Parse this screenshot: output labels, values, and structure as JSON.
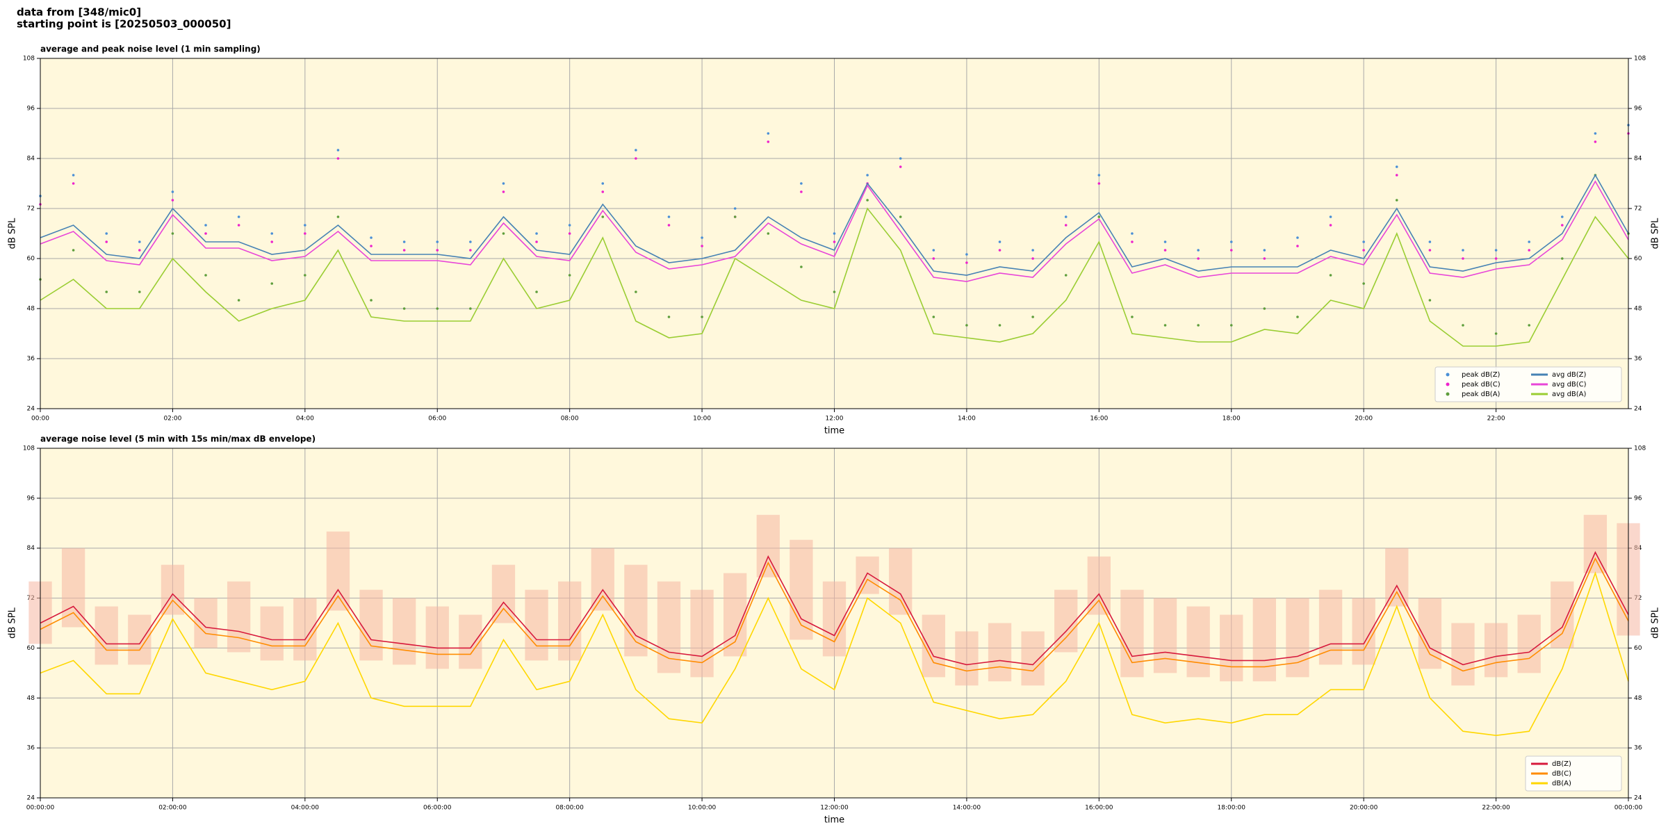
{
  "header": {
    "lines": [
      "data from [348/mic0]",
      "starting point is [20250503_000050]"
    ]
  },
  "chart_data": [
    {
      "type": "line",
      "title": "average and peak noise level (1 min sampling)",
      "xlabel": "time",
      "ylabel": "dB SPL",
      "background": "#fff8dc",
      "grid": true,
      "legend": "lower right",
      "legend_columns": 2,
      "x": [
        0,
        0.5,
        1,
        1.5,
        2,
        2.5,
        3,
        3.5,
        4,
        4.5,
        5,
        5.5,
        6,
        6.5,
        7,
        7.5,
        8,
        8.5,
        9,
        9.5,
        10,
        10.5,
        11,
        11.5,
        12,
        12.5,
        13,
        13.5,
        14,
        14.5,
        15,
        15.5,
        16,
        16.5,
        17,
        17.5,
        18,
        18.5,
        19,
        19.5,
        20,
        20.5,
        21,
        21.5,
        22,
        22.5,
        23,
        23.5,
        24
      ],
      "xlim": [
        0,
        24
      ],
      "xticks": [
        {
          "value": 0,
          "label": "00:00"
        },
        {
          "value": 2,
          "label": "02:00"
        },
        {
          "value": 4,
          "label": "04:00"
        },
        {
          "value": 6,
          "label": "06:00"
        },
        {
          "value": 8,
          "label": "08:00"
        },
        {
          "value": 10,
          "label": "10:00"
        },
        {
          "value": 12,
          "label": "12:00"
        },
        {
          "value": 14,
          "label": "14:00"
        },
        {
          "value": 16,
          "label": "16:00"
        },
        {
          "value": 18,
          "label": "18:00"
        },
        {
          "value": 20,
          "label": "20:00"
        },
        {
          "value": 22,
          "label": "22:00"
        }
      ],
      "ylim": [
        24,
        108
      ],
      "yticks": [
        24,
        36,
        48,
        60,
        72,
        84,
        96,
        108
      ],
      "series": [
        {
          "name": "peak dB(Z)",
          "kind": "scatter",
          "color": "#4a8fd6",
          "values": [
            75,
            80,
            66,
            64,
            76,
            68,
            70,
            66,
            68,
            86,
            65,
            64,
            64,
            64,
            78,
            66,
            68,
            78,
            86,
            70,
            65,
            72,
            90,
            78,
            66,
            80,
            84,
            62,
            61,
            64,
            62,
            70,
            80,
            66,
            64,
            62,
            64,
            62,
            65,
            70,
            64,
            82,
            64,
            62,
            62,
            64,
            70,
            90,
            92
          ]
        },
        {
          "name": "peak dB(C)",
          "kind": "scatter",
          "color": "#ee22cc",
          "values": [
            73,
            78,
            64,
            62,
            74,
            66,
            68,
            64,
            66,
            84,
            63,
            62,
            62,
            62,
            76,
            64,
            66,
            76,
            84,
            68,
            63,
            70,
            88,
            76,
            64,
            78,
            82,
            60,
            59,
            62,
            60,
            68,
            78,
            64,
            62,
            60,
            62,
            60,
            63,
            68,
            62,
            80,
            62,
            60,
            60,
            62,
            68,
            88,
            90
          ]
        },
        {
          "name": "peak dB(A)",
          "kind": "scatter",
          "color": "#5e9e3c",
          "values": [
            55,
            62,
            52,
            52,
            66,
            56,
            50,
            54,
            56,
            70,
            50,
            48,
            48,
            48,
            66,
            52,
            56,
            70,
            52,
            46,
            46,
            70,
            66,
            58,
            52,
            74,
            70,
            46,
            44,
            44,
            46,
            56,
            70,
            46,
            44,
            44,
            44,
            48,
            46,
            56,
            54,
            74,
            50,
            44,
            42,
            44,
            60,
            80,
            66
          ]
        },
        {
          "name": "avg dB(Z)",
          "kind": "line",
          "color": "#4682b4",
          "values": [
            65,
            68,
            61,
            60,
            72,
            64,
            64,
            61,
            62,
            68,
            61,
            61,
            61,
            60,
            70,
            62,
            61,
            73,
            63,
            59,
            60,
            62,
            70,
            65,
            62,
            78,
            68,
            57,
            56,
            58,
            57,
            65,
            71,
            58,
            60,
            57,
            58,
            58,
            58,
            62,
            60,
            72,
            58,
            57,
            59,
            60,
            66,
            80,
            66
          ]
        },
        {
          "name": "avg dB(C)",
          "kind": "line",
          "color": "#e845d8",
          "values": [
            63.5,
            66.5,
            59.5,
            58.5,
            70.5,
            62.5,
            62.5,
            59.5,
            60.5,
            66.5,
            59.5,
            59.5,
            59.5,
            58.5,
            68.5,
            60.5,
            59.5,
            71.5,
            61.5,
            57.5,
            58.5,
            60.5,
            68.5,
            63.5,
            60.5,
            77.5,
            66.5,
            55.5,
            54.5,
            56.5,
            55.5,
            63.5,
            69.5,
            56.5,
            58.5,
            55.5,
            56.5,
            56.5,
            56.5,
            60.5,
            58.5,
            70.5,
            56.5,
            55.5,
            57.5,
            58.5,
            64.5,
            78.5,
            64.5
          ]
        },
        {
          "name": "avg dB(A)",
          "kind": "line",
          "color": "#9acd32",
          "values": [
            50,
            55,
            48,
            48,
            60,
            52,
            45,
            48,
            50,
            62,
            46,
            45,
            45,
            45,
            60,
            48,
            50,
            65,
            45,
            41,
            42,
            60,
            55,
            50,
            48,
            72,
            62,
            42,
            41,
            40,
            42,
            50,
            64,
            42,
            41,
            40,
            40,
            43,
            42,
            50,
            48,
            66,
            45,
            39,
            39,
            40,
            55,
            70,
            60
          ]
        }
      ]
    },
    {
      "type": "line",
      "title": "average noise level (5 min with 15s min/max dB envelope)",
      "xlabel": "time",
      "ylabel": "dB SPL",
      "background": "#fff8dc",
      "grid": true,
      "legend": "lower right",
      "legend_columns": 1,
      "x": [
        0,
        0.5,
        1,
        1.5,
        2,
        2.5,
        3,
        3.5,
        4,
        4.5,
        5,
        5.5,
        6,
        6.5,
        7,
        7.5,
        8,
        8.5,
        9,
        9.5,
        10,
        10.5,
        11,
        11.5,
        12,
        12.5,
        13,
        13.5,
        14,
        14.5,
        15,
        15.5,
        16,
        16.5,
        17,
        17.5,
        18,
        18.5,
        19,
        19.5,
        20,
        20.5,
        21,
        21.5,
        22,
        22.5,
        23,
        23.5,
        24
      ],
      "xlim": [
        0,
        24
      ],
      "xticks": [
        {
          "value": 0,
          "label": "00:00:00"
        },
        {
          "value": 2,
          "label": "02:00:00"
        },
        {
          "value": 4,
          "label": "04:00:00"
        },
        {
          "value": 6,
          "label": "06:00:00"
        },
        {
          "value": 8,
          "label": "08:00:00"
        },
        {
          "value": 10,
          "label": "10:00:00"
        },
        {
          "value": 12,
          "label": "12:00:00"
        },
        {
          "value": 14,
          "label": "14:00:00"
        },
        {
          "value": 16,
          "label": "16:00:00"
        },
        {
          "value": 18,
          "label": "18:00:00"
        },
        {
          "value": 20,
          "label": "20:00:00"
        },
        {
          "value": 22,
          "label": "22:00:00"
        },
        {
          "value": 24,
          "label": "00:00:00"
        }
      ],
      "ylim": [
        24,
        108
      ],
      "yticks": [
        24,
        36,
        48,
        60,
        72,
        84,
        96,
        108
      ],
      "envelope": {
        "color": "#f5b7a3",
        "low": [
          61,
          65,
          56,
          56,
          68,
          60,
          59,
          57,
          57,
          69,
          57,
          56,
          55,
          55,
          66,
          57,
          57,
          69,
          58,
          54,
          53,
          58,
          77,
          62,
          58,
          73,
          68,
          53,
          51,
          52,
          51,
          59,
          68,
          53,
          54,
          53,
          52,
          52,
          53,
          56,
          56,
          70,
          55,
          51,
          53,
          54,
          60,
          78,
          63
        ],
        "high": [
          76,
          84,
          70,
          68,
          80,
          72,
          76,
          70,
          72,
          88,
          74,
          72,
          70,
          68,
          80,
          74,
          76,
          84,
          80,
          76,
          74,
          78,
          92,
          86,
          76,
          82,
          84,
          68,
          64,
          66,
          64,
          74,
          82,
          74,
          72,
          70,
          68,
          72,
          72,
          74,
          72,
          84,
          72,
          66,
          66,
          68,
          76,
          92,
          90
        ]
      },
      "series": [
        {
          "name": "dB(Z)",
          "kind": "line",
          "color": "#d7193c",
          "values": [
            66,
            70,
            61,
            61,
            73,
            65,
            64,
            62,
            62,
            74,
            62,
            61,
            60,
            60,
            71,
            62,
            62,
            74,
            63,
            59,
            58,
            63,
            82,
            67,
            63,
            78,
            73,
            58,
            56,
            57,
            56,
            64,
            73,
            58,
            59,
            58,
            57,
            57,
            58,
            61,
            61,
            75,
            60,
            56,
            58,
            59,
            65,
            83,
            68
          ]
        },
        {
          "name": "dB(C)",
          "kind": "line",
          "color": "#ff8c00",
          "values": [
            64.5,
            68.5,
            59.5,
            59.5,
            71.5,
            63.5,
            62.5,
            60.5,
            60.5,
            72.5,
            60.5,
            59.5,
            58.5,
            58.5,
            69.5,
            60.5,
            60.5,
            72.5,
            61.5,
            57.5,
            56.5,
            61.5,
            80.5,
            65.5,
            61.5,
            76.5,
            71.5,
            56.5,
            54.5,
            55.5,
            54.5,
            62.5,
            71.5,
            56.5,
            57.5,
            56.5,
            55.5,
            55.5,
            56.5,
            59.5,
            59.5,
            73.5,
            58.5,
            54.5,
            56.5,
            57.5,
            63.5,
            81.5,
            66.5
          ]
        },
        {
          "name": "dB(A)",
          "kind": "line",
          "color": "#ffd700",
          "values": [
            54,
            57,
            49,
            49,
            67,
            54,
            52,
            50,
            52,
            66,
            48,
            46,
            46,
            46,
            62,
            50,
            52,
            68,
            50,
            43,
            42,
            55,
            72,
            55,
            50,
            72,
            66,
            47,
            45,
            43,
            44,
            52,
            66,
            44,
            42,
            43,
            42,
            44,
            44,
            50,
            50,
            70,
            48,
            40,
            39,
            40,
            55,
            78,
            52
          ]
        }
      ]
    }
  ]
}
